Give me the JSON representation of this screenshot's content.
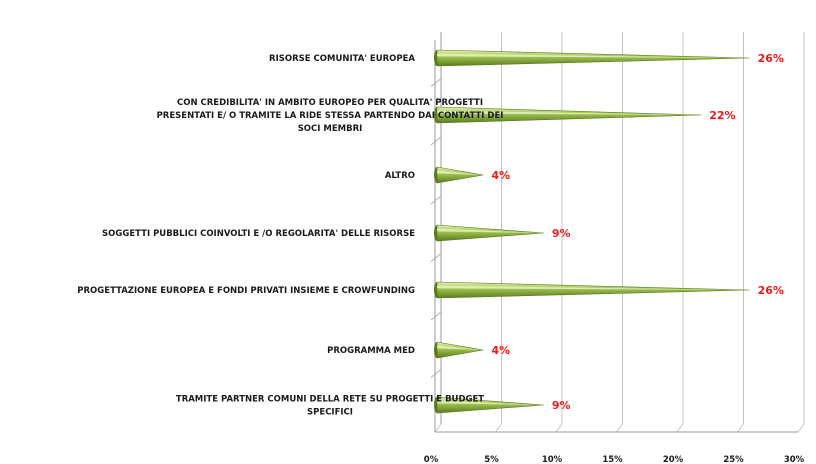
{
  "chart_data": {
    "type": "bar",
    "orientation": "horizontal",
    "style": "3d-cone",
    "categories": [
      [
        "RISORSE COMUNITA' EUROPEA"
      ],
      [
        "CON CREDIBILITA' IN AMBITO EUROPEO PER QUALITA' PROGETTI",
        "PRESENTATI E/ O TRAMITE LA RIDE STESSA PARTENDO DAI CONTATTI DEI",
        "SOCI MEMBRI"
      ],
      [
        "ALTRO"
      ],
      [
        "SOGGETTI PUBBLICI COINVOLTI E /O REGOLARITA' DELLE RISORSE"
      ],
      [
        "PROGETTAZIONE EUROPEA E FONDI PRIVATI INSIEME E CROWFUNDING"
      ],
      [
        "PROGRAMMA MED"
      ],
      [
        "TRAMITE PARTNER COMUNI DELLA RETE SU PROGETTI E BUDGET",
        "SPECIFICI"
      ]
    ],
    "values": [
      26,
      22,
      4,
      9,
      26,
      4,
      9
    ],
    "value_labels": [
      "26%",
      "22%",
      "4%",
      "9%",
      "26%",
      "4%",
      "9%"
    ],
    "xlim": [
      0,
      30
    ],
    "xticks": [
      "0%",
      "5%",
      "10%",
      "15%",
      "20%",
      "25%",
      "30%"
    ],
    "grid": true,
    "colors": {
      "cone_light": "#e6f2b8",
      "cone_mid": "#a9cc5a",
      "cone_dark": "#587a1c",
      "value_label": "#ee1c1c",
      "grid": "#c4c4c4"
    }
  }
}
